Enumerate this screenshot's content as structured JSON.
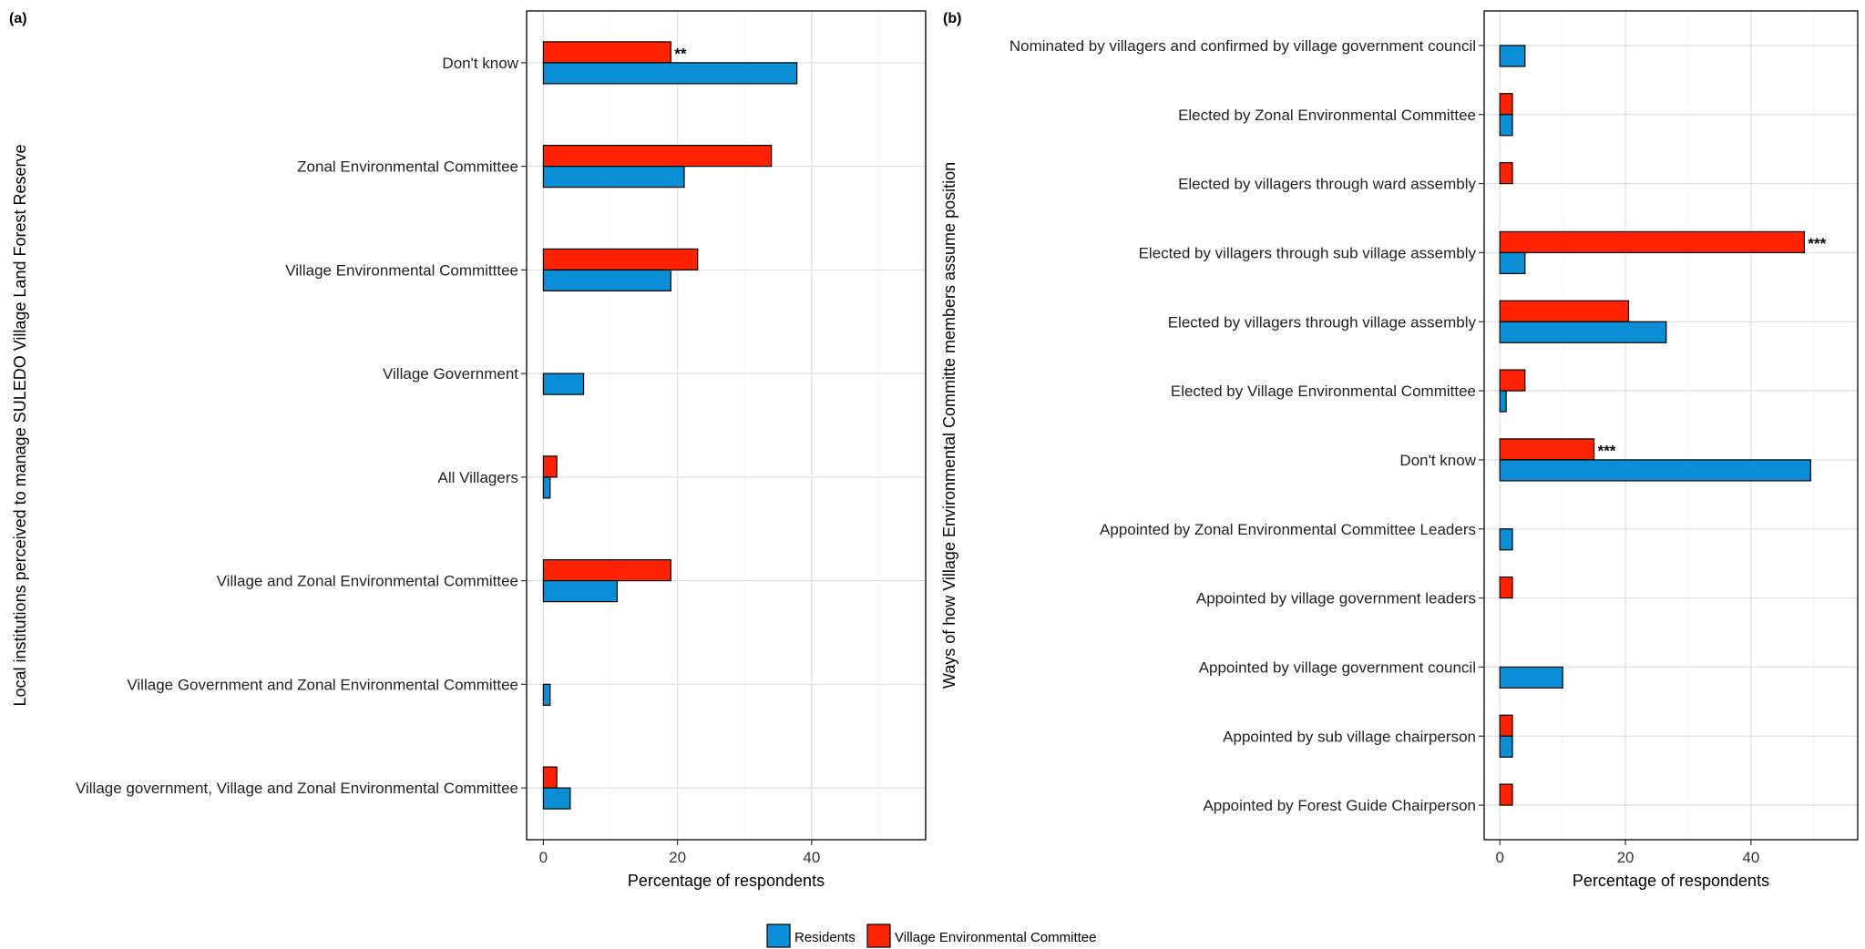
{
  "legend": {
    "placement": "bottom",
    "items": [
      {
        "label": "Residents",
        "color": "#0a8fd6"
      },
      {
        "label": "Village Environmental Committee",
        "color": "#ff2200"
      }
    ]
  },
  "chart_data": [
    {
      "type": "bar",
      "orientation": "horizontal",
      "panel_label": "(a)",
      "xlabel": "Percentage of respondents",
      "ylabel": "Local institutions perceived to manage SULEDO Village Land Forest Reserve",
      "xlim": [
        -2.5,
        57
      ],
      "xticks": [
        0,
        20,
        40
      ],
      "grid": true,
      "categories": [
        "Don't know",
        "Zonal Environmental Committee",
        "Village Environmental Committtee",
        "Village Government",
        "All Villagers",
        "Village and Zonal Environmental Committee",
        "Village Government and Zonal Environmental Committee",
        "Village government, Village and Zonal Environmental Committee"
      ],
      "series": [
        {
          "name": "Residents",
          "color": "#0a8fd6",
          "values": [
            37.8,
            21,
            19,
            6,
            1,
            11,
            1,
            4
          ]
        },
        {
          "name": "Village Environmental Committee",
          "color": "#ff2200",
          "values": [
            19,
            34,
            23,
            0,
            2,
            19,
            0,
            2
          ]
        }
      ],
      "annotations": [
        {
          "category": "Don't know",
          "series": "Village Environmental Committee",
          "text": "**"
        }
      ]
    },
    {
      "type": "bar",
      "orientation": "horizontal",
      "panel_label": "(b)",
      "xlabel": "Percentage of respondents",
      "ylabel": "Ways of how Village Environmental Committe members assume position",
      "xlim": [
        -2.5,
        57
      ],
      "xticks": [
        0,
        20,
        40
      ],
      "grid": true,
      "categories": [
        "Nominated by villagers and confirmed by village government council",
        "Elected by Zonal Environmental Committee",
        "Elected by villagers through ward assembly",
        "Elected by villagers through sub village assembly",
        "Elected by villagers through  village assembly",
        "Elected by Village Environmental Committee",
        "Don't know",
        "Appointed by Zonal Environmental Committee Leaders",
        "Appointed by village government leaders",
        "Appointed by village government council",
        "Appointed by sub village chairperson",
        "Appointed by Forest Guide Chairperson"
      ],
      "series": [
        {
          "name": "Residents",
          "color": "#0a8fd6",
          "values": [
            4,
            2,
            0,
            4,
            26.5,
            1,
            49.5,
            2,
            0,
            10,
            2,
            0
          ]
        },
        {
          "name": "Village Environmental Committee",
          "color": "#ff2200",
          "values": [
            0,
            2,
            2,
            48.5,
            20.5,
            4,
            15,
            0,
            2,
            0,
            2,
            2
          ]
        }
      ],
      "annotations": [
        {
          "category": "Elected by villagers through sub village assembly",
          "series": "Village Environmental Committee",
          "text": "***"
        },
        {
          "category": "Don't know",
          "series": "Village Environmental Committee",
          "text": "***"
        }
      ]
    }
  ]
}
